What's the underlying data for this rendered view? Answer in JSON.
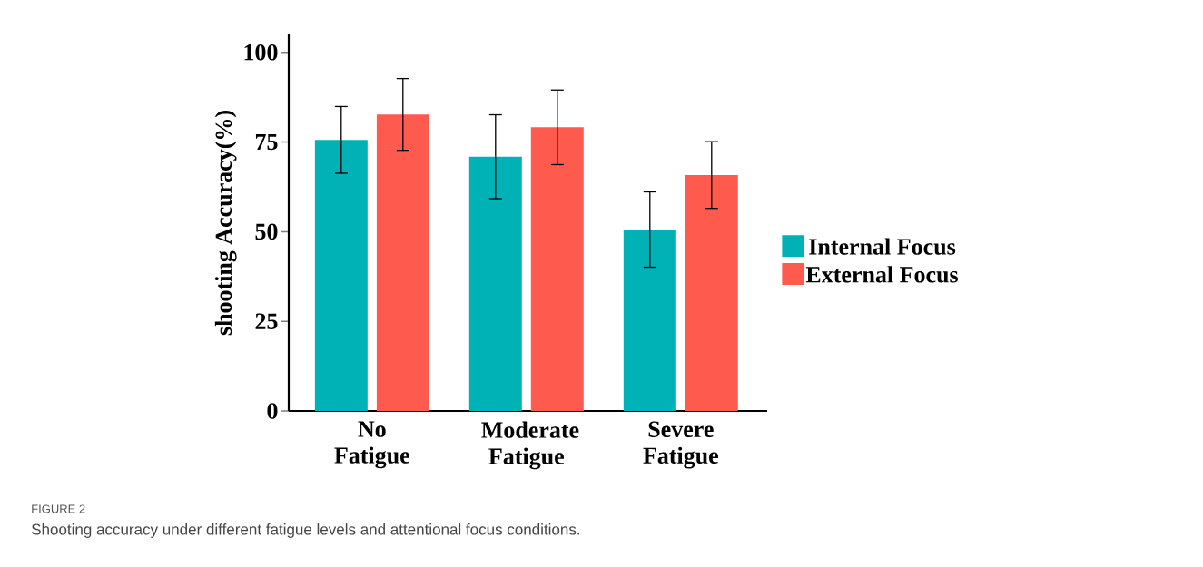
{
  "chart_data": {
    "type": "bar",
    "ylabel": "shooting Accuracy(%)",
    "categories": [
      "No Fatigue",
      "Moderate Fatigue",
      "Severe Fatigue"
    ],
    "series": [
      {
        "name": "Internal Focus",
        "color": "#00b2b5",
        "values": [
          75.6,
          70.9,
          50.6
        ],
        "errors": [
          9.3,
          11.7,
          10.5
        ]
      },
      {
        "name": "External Focus",
        "color": "#fe5a4e",
        "values": [
          82.7,
          79.1,
          65.8
        ],
        "errors": [
          10.0,
          10.4,
          9.3
        ]
      }
    ],
    "ylim": [
      0,
      105
    ],
    "yticks": [
      0,
      25,
      50,
      75,
      100
    ],
    "legend": "right",
    "annotations": [
      "FIGURE 2",
      "Shooting accuracy under different fatigue levels and attentional focus conditions."
    ]
  }
}
